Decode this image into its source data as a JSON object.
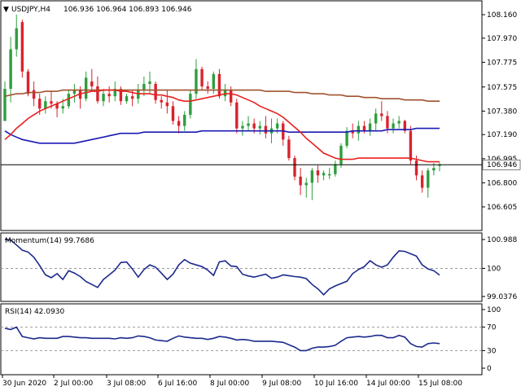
{
  "chart_data": {
    "type": "candlestick",
    "symbol_header": {
      "arrow": "▼",
      "symbol": "USDJPY,H4",
      "ohlc": "106.936 106.964 106.893 106.946"
    },
    "price_axis": {
      "ticks": [
        "108.160",
        "107.970",
        "107.775",
        "107.575",
        "107.380",
        "107.190",
        "106.995",
        "106.800",
        "106.605"
      ],
      "current_price_label": "106.946",
      "current_price": 106.946
    },
    "time_axis": {
      "labels": [
        "30 Jun 2020",
        "2 Jul 00:00",
        "3 Jul 08:00",
        "6 Jul 16:00",
        "8 Jul 00:00",
        "9 Jul 08:00",
        "10 Jul 16:00",
        "14 Jul 00:00",
        "15 Jul 08:00"
      ]
    },
    "colors": {
      "bull": "#2e9e3e",
      "bear": "#d9232d",
      "ma_fast": "#e8201f",
      "ma_mid": "#1a1ab5",
      "ma_slow": "#a0522d",
      "osc": "#1c2a8c"
    },
    "candles": [
      [
        107.3,
        107.62,
        107.3,
        107.56
      ],
      [
        107.56,
        107.98,
        107.45,
        107.88
      ],
      [
        107.88,
        108.16,
        107.82,
        108.05
      ],
      [
        108.1,
        108.12,
        107.65,
        107.7
      ],
      [
        107.7,
        107.72,
        107.5,
        107.52
      ],
      [
        107.55,
        107.62,
        107.42,
        107.48
      ],
      [
        107.48,
        107.52,
        107.35,
        107.4
      ],
      [
        107.4,
        107.5,
        107.36,
        107.46
      ],
      [
        107.46,
        107.54,
        107.4,
        107.44
      ],
      [
        107.44,
        107.46,
        107.33,
        107.4
      ],
      [
        107.4,
        107.48,
        107.36,
        107.42
      ],
      [
        107.42,
        107.55,
        107.4,
        107.52
      ],
      [
        107.52,
        107.6,
        107.45,
        107.55
      ],
      [
        107.55,
        107.58,
        107.4,
        107.48
      ],
      [
        107.48,
        107.7,
        107.46,
        107.65
      ],
      [
        107.62,
        107.72,
        107.54,
        107.58
      ],
      [
        107.58,
        107.66,
        107.44,
        107.46
      ],
      [
        107.46,
        107.56,
        107.42,
        107.52
      ],
      [
        107.52,
        107.58,
        107.45,
        107.5
      ],
      [
        107.5,
        107.62,
        107.46,
        107.56
      ],
      [
        107.56,
        107.58,
        107.43,
        107.46
      ],
      [
        107.46,
        107.52,
        107.44,
        107.5
      ],
      [
        107.5,
        107.55,
        107.42,
        107.48
      ],
      [
        107.48,
        107.6,
        107.44,
        107.55
      ],
      [
        107.55,
        107.66,
        107.5,
        107.6
      ],
      [
        107.6,
        107.7,
        107.52,
        107.62
      ],
      [
        107.6,
        107.62,
        107.44,
        107.47
      ],
      [
        107.47,
        107.5,
        107.4,
        107.45
      ],
      [
        107.45,
        107.55,
        107.36,
        107.42
      ],
      [
        107.42,
        107.46,
        107.27,
        107.3
      ],
      [
        107.3,
        107.34,
        107.2,
        107.26
      ],
      [
        107.26,
        107.38,
        107.22,
        107.35
      ],
      [
        107.35,
        107.55,
        107.32,
        107.52
      ],
      [
        107.52,
        107.8,
        107.48,
        107.72
      ],
      [
        107.72,
        107.74,
        107.55,
        107.58
      ],
      [
        107.58,
        107.62,
        107.52,
        107.56
      ],
      [
        107.56,
        107.7,
        107.52,
        107.68
      ],
      [
        107.68,
        107.72,
        107.48,
        107.5
      ],
      [
        107.5,
        107.6,
        107.46,
        107.55
      ],
      [
        107.55,
        107.58,
        107.42,
        107.45
      ],
      [
        107.45,
        107.48,
        107.2,
        107.24
      ],
      [
        107.24,
        107.3,
        107.18,
        107.26
      ],
      [
        107.26,
        107.34,
        107.22,
        107.28
      ],
      [
        107.28,
        107.32,
        107.2,
        107.24
      ],
      [
        107.24,
        107.3,
        107.19,
        107.26
      ],
      [
        107.26,
        107.34,
        107.16,
        107.2
      ],
      [
        107.2,
        107.32,
        107.12,
        107.24
      ],
      [
        107.24,
        107.32,
        107.2,
        107.28
      ],
      [
        107.28,
        107.3,
        107.1,
        107.15
      ],
      [
        107.15,
        107.18,
        106.98,
        107.0
      ],
      [
        107.0,
        107.02,
        106.82,
        106.85
      ],
      [
        106.85,
        106.92,
        106.7,
        106.78
      ],
      [
        106.78,
        106.84,
        106.68,
        106.8
      ],
      [
        106.8,
        106.92,
        106.66,
        106.9
      ],
      [
        106.9,
        106.94,
        106.8,
        106.86
      ],
      [
        106.86,
        106.9,
        106.82,
        106.88
      ],
      [
        106.86,
        106.92,
        106.83,
        106.87
      ],
      [
        106.87,
        106.98,
        106.85,
        106.95
      ],
      [
        106.95,
        107.12,
        106.92,
        107.1
      ],
      [
        107.1,
        107.25,
        107.08,
        107.22
      ],
      [
        107.22,
        107.28,
        107.16,
        107.2
      ],
      [
        107.2,
        107.3,
        107.14,
        107.26
      ],
      [
        107.26,
        107.3,
        107.2,
        107.22
      ],
      [
        107.22,
        107.32,
        107.18,
        107.28
      ],
      [
        107.28,
        107.4,
        107.22,
        107.36
      ],
      [
        107.36,
        107.46,
        107.3,
        107.34
      ],
      [
        107.34,
        107.38,
        107.2,
        107.24
      ],
      [
        107.24,
        107.32,
        107.2,
        107.28
      ],
      [
        107.28,
        107.34,
        107.24,
        107.3
      ],
      [
        107.3,
        107.31,
        107.2,
        107.22
      ],
      [
        107.22,
        107.26,
        106.95,
        106.98
      ],
      [
        106.98,
        107.02,
        106.82,
        106.86
      ],
      [
        106.86,
        106.9,
        106.72,
        106.76
      ],
      [
        106.76,
        106.92,
        106.68,
        106.9
      ],
      [
        106.9,
        106.96,
        106.86,
        106.92
      ],
      [
        106.936,
        106.964,
        106.893,
        106.946
      ]
    ],
    "ma_fast": [
      107.15,
      107.19,
      107.24,
      107.28,
      107.32,
      107.35,
      107.38,
      107.4,
      107.42,
      107.44,
      107.46,
      107.48,
      107.5,
      107.52,
      107.53,
      107.54,
      107.54,
      107.55,
      107.55,
      107.55,
      107.54,
      107.54,
      107.53,
      107.52,
      107.52,
      107.52,
      107.51,
      107.51,
      107.5,
      107.49,
      107.47,
      107.46,
      107.46,
      107.47,
      107.48,
      107.49,
      107.5,
      107.51,
      107.52,
      107.52,
      107.51,
      107.49,
      107.47,
      107.45,
      107.42,
      107.4,
      107.38,
      107.36,
      107.33,
      107.29,
      107.25,
      107.21,
      107.16,
      107.12,
      107.08,
      107.04,
      107.02,
      107.0,
      106.99,
      106.99,
      106.99,
      107.0,
      107.0,
      107.0,
      107.0,
      107.0,
      107.0,
      107.0,
      107.0,
      107.0,
      107.0,
      106.99,
      106.98,
      106.97,
      106.97,
      106.97
    ],
    "ma_mid": [
      107.22,
      107.19,
      107.17,
      107.15,
      107.14,
      107.13,
      107.12,
      107.12,
      107.12,
      107.12,
      107.12,
      107.12,
      107.12,
      107.13,
      107.14,
      107.15,
      107.16,
      107.17,
      107.18,
      107.19,
      107.2,
      107.2,
      107.2,
      107.2,
      107.21,
      107.21,
      107.21,
      107.21,
      107.21,
      107.21,
      107.21,
      107.21,
      107.21,
      107.21,
      107.22,
      107.22,
      107.22,
      107.22,
      107.22,
      107.22,
      107.22,
      107.22,
      107.22,
      107.22,
      107.22,
      107.22,
      107.22,
      107.22,
      107.22,
      107.21,
      107.21,
      107.21,
      107.21,
      107.21,
      107.21,
      107.21,
      107.21,
      107.21,
      107.21,
      107.21,
      107.22,
      107.22,
      107.22,
      107.22,
      107.22,
      107.22,
      107.23,
      107.23,
      107.23,
      107.23,
      107.23,
      107.24,
      107.24,
      107.24,
      107.24,
      107.24
    ],
    "ma_slow": [
      107.5,
      107.51,
      107.52,
      107.52,
      107.53,
      107.53,
      107.53,
      107.54,
      107.54,
      107.54,
      107.55,
      107.55,
      107.55,
      107.55,
      107.55,
      107.55,
      107.55,
      107.55,
      107.55,
      107.55,
      107.55,
      107.55,
      107.55,
      107.55,
      107.55,
      107.55,
      107.55,
      107.55,
      107.55,
      107.55,
      107.55,
      107.55,
      107.55,
      107.55,
      107.55,
      107.55,
      107.55,
      107.55,
      107.55,
      107.55,
      107.55,
      107.55,
      107.55,
      107.55,
      107.55,
      107.54,
      107.54,
      107.54,
      107.54,
      107.54,
      107.53,
      107.53,
      107.53,
      107.52,
      107.52,
      107.52,
      107.51,
      107.51,
      107.51,
      107.5,
      107.5,
      107.5,
      107.49,
      107.49,
      107.49,
      107.48,
      107.48,
      107.48,
      107.48,
      107.47,
      107.47,
      107.47,
      107.47,
      107.46,
      107.46,
      107.46
    ],
    "momentum": {
      "label": "Momentum(14) 99.7686",
      "ticks": [
        "100.988",
        "100",
        "99.0376"
      ],
      "values": [
        100.99,
        100.97,
        100.8,
        100.62,
        100.56,
        100.38,
        100.1,
        99.78,
        99.68,
        99.82,
        99.62,
        99.92,
        99.84,
        99.72,
        99.55,
        99.45,
        99.35,
        99.62,
        99.78,
        99.94,
        100.2,
        100.22,
        99.98,
        99.7,
        99.96,
        100.12,
        100.04,
        99.84,
        99.62,
        99.8,
        100.12,
        100.3,
        100.18,
        100.12,
        100.06,
        99.94,
        99.76,
        100.22,
        100.26,
        100.08,
        100.06,
        99.8,
        99.74,
        99.7,
        99.75,
        99.8,
        99.66,
        99.7,
        99.78,
        99.75,
        99.72,
        99.7,
        99.65,
        99.45,
        99.3,
        99.1,
        99.3,
        99.4,
        99.48,
        99.56,
        99.82,
        99.96,
        100.06,
        100.26,
        100.12,
        100.04,
        100.12,
        100.38,
        100.6,
        100.58,
        100.5,
        100.42,
        100.12,
        99.98,
        99.92,
        99.77
      ]
    },
    "rsi": {
      "label": "RSI(14) 42.0930",
      "ticks": [
        "100",
        "70",
        "30",
        "0"
      ],
      "levels": [
        70,
        30
      ],
      "values": [
        68,
        66,
        70,
        54,
        52,
        50,
        52,
        51,
        51,
        51,
        54,
        54,
        53,
        52,
        52,
        51,
        51,
        51,
        51,
        50,
        52,
        51,
        52,
        55,
        54,
        52,
        48,
        47,
        46,
        51,
        55,
        53,
        52,
        51,
        51,
        49,
        51,
        54,
        53,
        51,
        48,
        49,
        48,
        46,
        46,
        46,
        46,
        45,
        44,
        40,
        36,
        30,
        30,
        34,
        36,
        36,
        37,
        39,
        46,
        52,
        53,
        54,
        53,
        54,
        56,
        56,
        52,
        52,
        56,
        53,
        42,
        37,
        36,
        42,
        43,
        42
      ]
    }
  }
}
